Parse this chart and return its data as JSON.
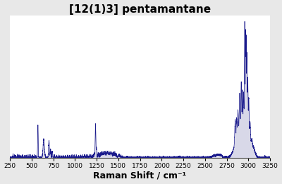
{
  "title": "[12(1)3] pentamantane",
  "xlabel": "Raman Shift / cm⁻¹",
  "xlim": [
    250,
    3250
  ],
  "ylim": [
    0,
    1.05
  ],
  "xticks": [
    250,
    500,
    750,
    1000,
    1250,
    1500,
    1750,
    2000,
    2250,
    2500,
    2750,
    3000,
    3250
  ],
  "line_color": "#1a1a8c",
  "fill_color": "#aaaacc",
  "background_color": "#e8e8e8",
  "plot_bg": "#ffffff",
  "title_fontsize": 11,
  "xlabel_fontsize": 9
}
